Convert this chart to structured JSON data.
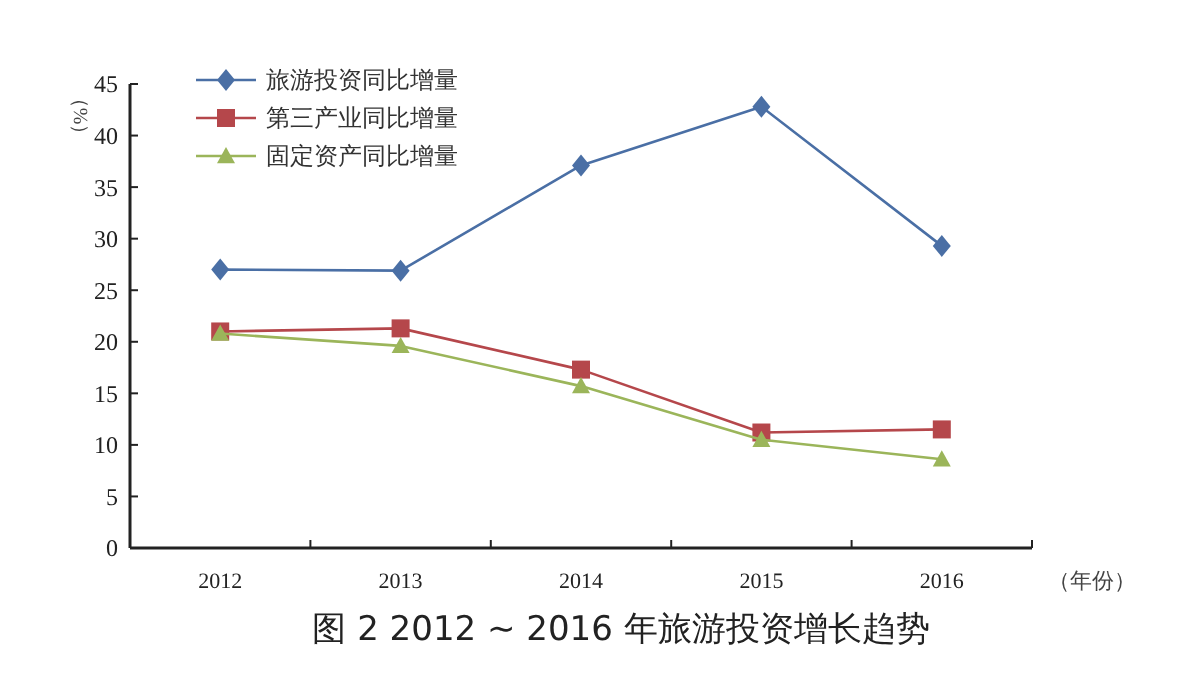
{
  "chart_data": {
    "type": "line",
    "title": "图 2   2012 ~ 2016 年旅游投资增长趋势",
    "xlabel": "（年份）",
    "ylabel": "（%）",
    "categories": [
      "2012",
      "2013",
      "2014",
      "2015",
      "2016"
    ],
    "ylim": [
      0,
      45
    ],
    "yticks": [
      0,
      5,
      10,
      15,
      20,
      25,
      30,
      35,
      40,
      45
    ],
    "legend": "top left",
    "grid": false,
    "series": [
      {
        "name": "旅游投资同比增量",
        "color": "#4a6fa5",
        "marker": "diamond",
        "values": [
          27,
          26.9,
          37.1,
          42.8,
          29.3
        ]
      },
      {
        "name": "第三产业同比增量",
        "color": "#b5474b",
        "marker": "square",
        "values": [
          21,
          21.3,
          17.3,
          11.2,
          11.5
        ]
      },
      {
        "name": "固定资产同比增量",
        "color": "#9bb55a",
        "marker": "triangle",
        "values": [
          20.8,
          19.6,
          15.7,
          10.5,
          8.6
        ]
      }
    ]
  }
}
